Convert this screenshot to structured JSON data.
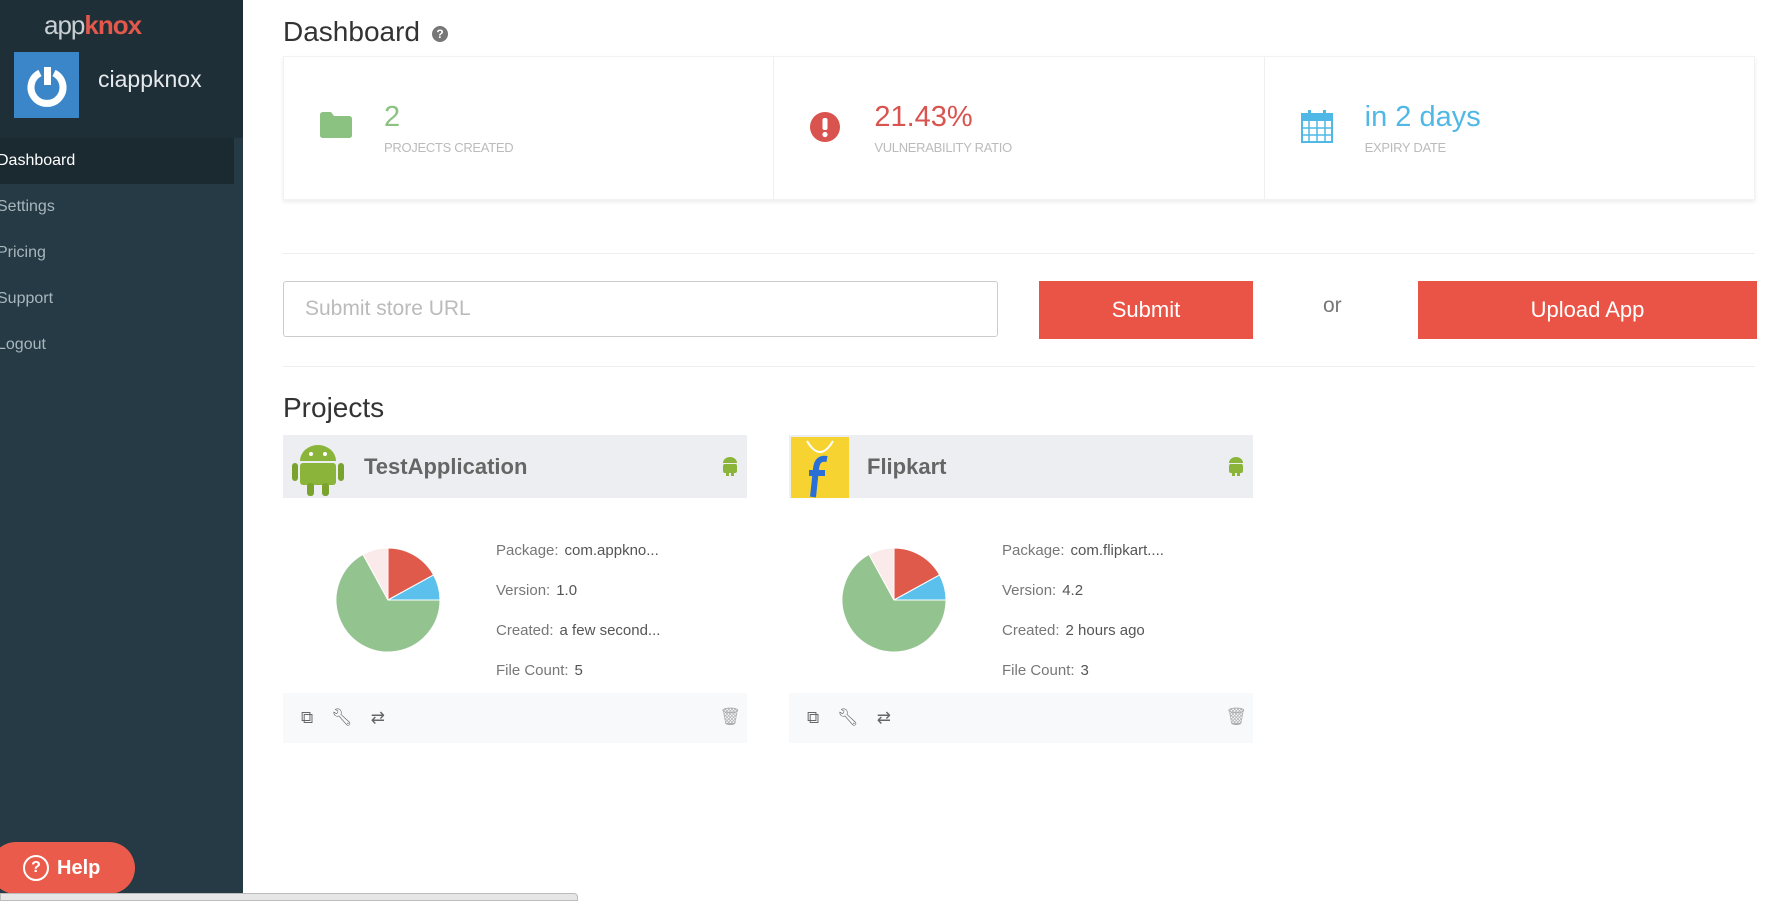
{
  "sidebar": {
    "logo_light": "app",
    "logo_bold": "knox",
    "username": "ciappknox",
    "items": [
      {
        "label": "Dashboard",
        "active": true
      },
      {
        "label": "Settings"
      },
      {
        "label": "Pricing"
      },
      {
        "label": "Support"
      },
      {
        "label": "Logout"
      }
    ],
    "help_label": "Help"
  },
  "header": {
    "title": "Dashboard",
    "help_icon": "question-circle-icon"
  },
  "stats": [
    {
      "value": "2",
      "label": "PROJECTS CREATED",
      "color": "#8bc281",
      "icon": "folder-icon"
    },
    {
      "value": "21.43%",
      "label": "VULNERABILITY RATIO",
      "color": "#d9534f",
      "icon": "exclamation-circle-icon"
    },
    {
      "value": "in 2 days",
      "label": "EXPIRY DATE",
      "color": "#4fb8e6",
      "icon": "calendar-icon"
    }
  ],
  "submit": {
    "placeholder": "Submit store URL",
    "value": "",
    "submit_label": "Submit",
    "or_label": "or",
    "upload_label": "Upload App"
  },
  "projects": {
    "title": "Projects",
    "items": [
      {
        "name": "TestApplication",
        "package_label": "Package:",
        "package": "com.appkno...",
        "version_label": "Version:",
        "version": "1.0",
        "created_label": "Created:",
        "created": "a few second...",
        "file_count_label": "File Count:",
        "file_count": "5",
        "pie": [
          0.17,
          0.08,
          0.67,
          0.08
        ]
      },
      {
        "name": "Flipkart",
        "package_label": "Package:",
        "package": "com.flipkart....",
        "version_label": "Version:",
        "version": "4.2",
        "created_label": "Created:",
        "created": "2 hours ago",
        "file_count_label": "File Count:",
        "file_count": "3",
        "pie": [
          0.17,
          0.08,
          0.67,
          0.08
        ]
      }
    ],
    "pie_colors": [
      "#e05a4b",
      "#5bc0eb",
      "#93c48f",
      "#fbeaea"
    ]
  }
}
